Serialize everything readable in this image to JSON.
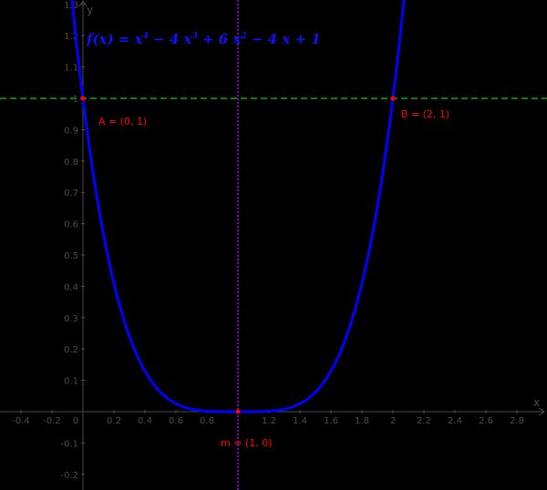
{
  "chart_data": {
    "type": "line",
    "title": "",
    "xlabel": "x",
    "ylabel": "y",
    "xlim": [
      -0.53,
      2.99
    ],
    "ylim": [
      -0.25,
      1.31
    ],
    "grid": false,
    "x_ticks": [
      "-0.4",
      "-0.2",
      "0",
      "0.2",
      "0.4",
      "0.6",
      "0.8",
      "1.2",
      "1.4",
      "1.6",
      "1.8",
      "2",
      "2.2",
      "2.4",
      "2.6",
      "2.8"
    ],
    "y_ticks": [
      "-0.2",
      "-0.1",
      "0.1",
      "0.2",
      "0.3",
      "0.4",
      "0.5",
      "0.6",
      "0.7",
      "0.8",
      "0.9",
      "1",
      "1.1",
      "1.2",
      "1.3"
    ],
    "series": [
      {
        "name": "f(x) = x^4 - 4x^3 + 6x^2 - 4x + 1",
        "color": "#0000ff",
        "function": "(x-1)^4",
        "x": [
          -0.1,
          0,
          0.2,
          0.4,
          0.6,
          0.8,
          1.0,
          1.2,
          1.4,
          1.6,
          1.8,
          2.0,
          2.07
        ],
        "y": [
          1.4641,
          1,
          0.4096,
          0.1296,
          0.0256,
          0.0016,
          0,
          0.0016,
          0.0256,
          0.1296,
          0.4096,
          1,
          1.31
        ]
      }
    ],
    "lines": [
      {
        "name": "y = 1",
        "type": "horizontal",
        "value": 1,
        "color": "#008000",
        "style": "dashed"
      },
      {
        "name": "x = 1",
        "type": "vertical",
        "value": 1,
        "color": "#7a00b0",
        "style": "dotted"
      }
    ],
    "points": [
      {
        "name": "A",
        "x": 0,
        "y": 1,
        "label": "A = (0, 1)",
        "color": "#ff0000"
      },
      {
        "name": "B",
        "x": 2,
        "y": 1,
        "label": "B = (2, 1)",
        "color": "#ff0000"
      },
      {
        "name": "m",
        "x": 1,
        "y": 0,
        "label": "m = (1, 0)",
        "color": "#ff0000"
      }
    ],
    "annotations": [
      "f(x) = x⁴ − 4x³ + 6x² − 4x + 1"
    ]
  },
  "formula": {
    "lhs": "f(x) =",
    "t1": "x",
    "e1": "4",
    "t2": " − 4 x",
    "e2": "3",
    "t3": " + 6 x",
    "e3": "2",
    "t4": " − 4 x + 1"
  },
  "axes": {
    "x_name": "x",
    "y_name": "y"
  }
}
